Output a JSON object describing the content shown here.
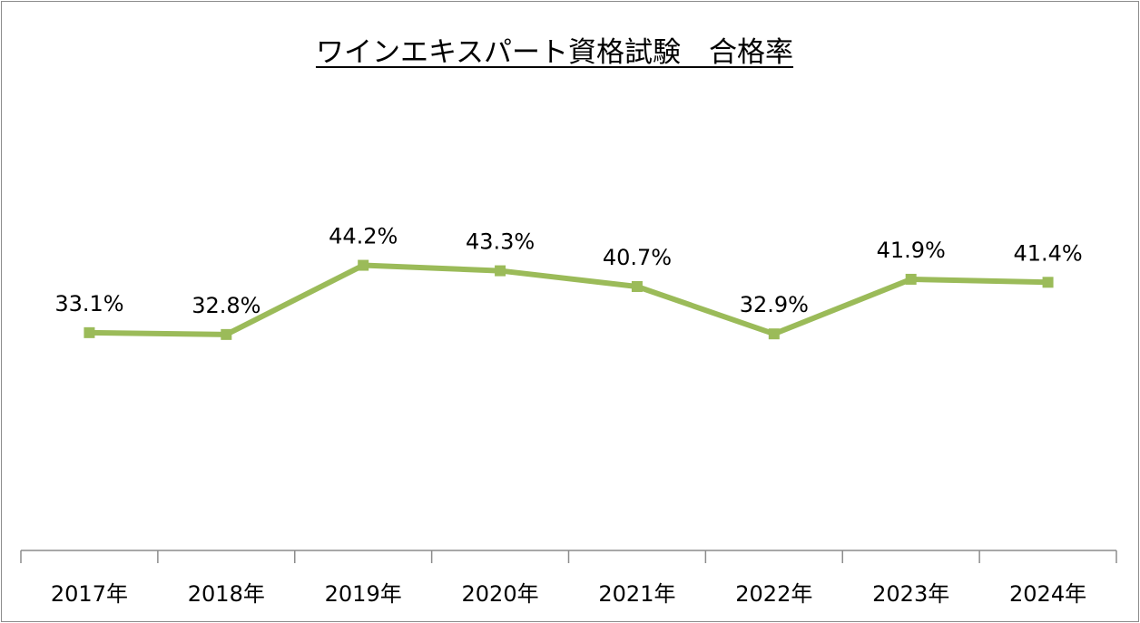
{
  "chart_data": {
    "type": "line",
    "title": "ワインエキスパート資格試験　合格率",
    "categories": [
      "2017年",
      "2018年",
      "2019年",
      "2020年",
      "2021年",
      "2022年",
      "2023年",
      "2024年"
    ],
    "series": [
      {
        "name": "合格率",
        "values": [
          33.1,
          32.8,
          44.2,
          43.3,
          40.7,
          32.9,
          41.9,
          41.4
        ],
        "labels": [
          "33.1%",
          "32.8%",
          "44.2%",
          "43.3%",
          "40.7%",
          "32.9%",
          "41.9%",
          "41.4%"
        ]
      }
    ],
    "ylim": [
      0,
      75
    ],
    "xlabel": "",
    "ylabel": "",
    "grid": false,
    "legend": "none",
    "line_color": "#9bbb59"
  }
}
